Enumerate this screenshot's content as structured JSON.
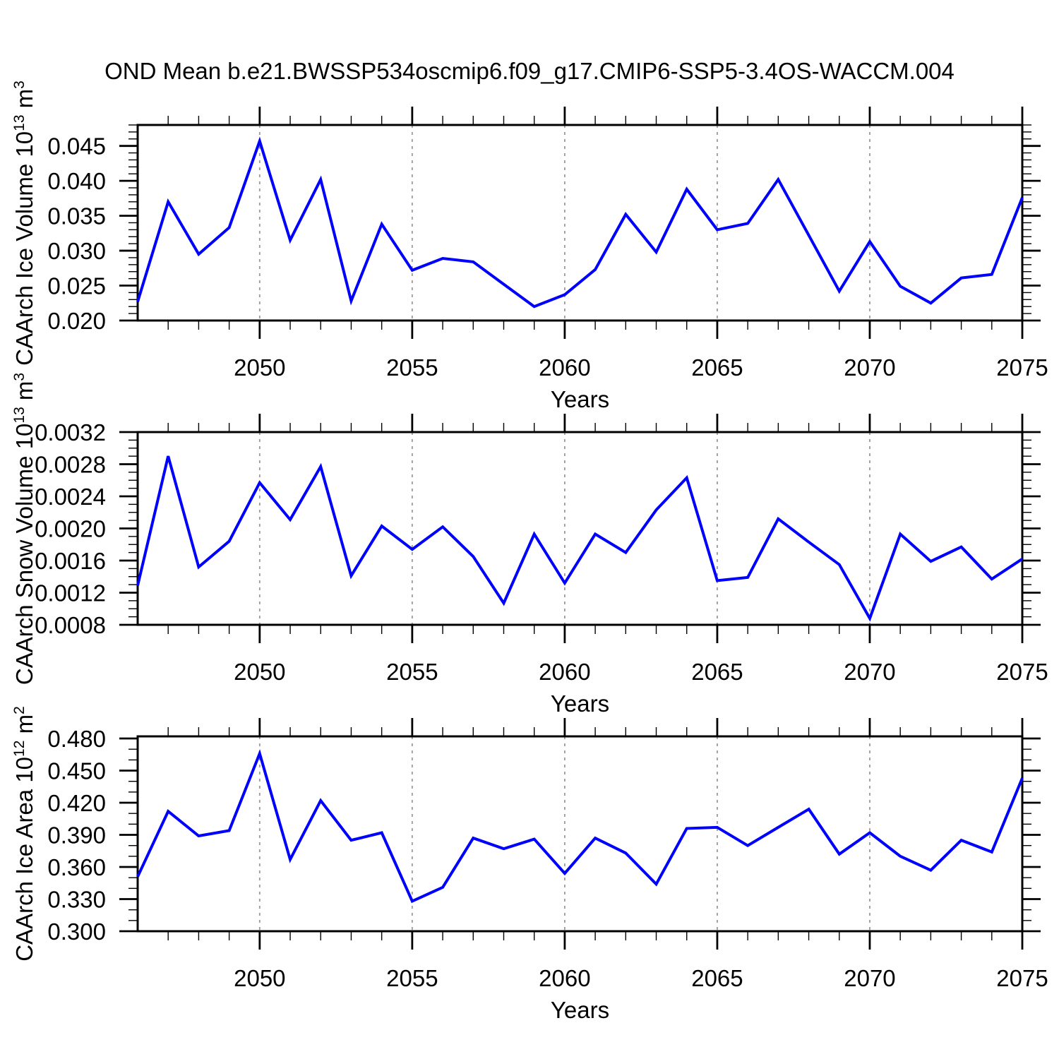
{
  "title": "OND Mean b.e21.BWSSP534oscmip6.f09_g17.CMIP6-SSP5-3.4OS-WACCM.004",
  "colors": {
    "series_line": "#0000ff",
    "gridline": "#9a9a9a",
    "axis": "#000000"
  },
  "x_axis": {
    "label": "Years",
    "range": [
      2046,
      2075
    ],
    "major_tick_years": [
      2050,
      2055,
      2060,
      2065,
      2070,
      2075
    ],
    "tick_labels": [
      "2050",
      "2055",
      "2060",
      "2065",
      "2070",
      "2075"
    ],
    "gridline_years": [
      2050,
      2055,
      2060,
      2065,
      2070
    ],
    "minor_step": 1
  },
  "chart_data": [
    {
      "type": "line",
      "title": "",
      "ylabel_plain": "CAArch Ice Volume 10^13 m^3",
      "ylabel_parts": {
        "a": "CAArch Ice Volume 10",
        "exp_a": "13",
        "b": " m",
        "exp_b": "3"
      },
      "xlabel": "Years",
      "ylim": [
        0.02,
        0.048
      ],
      "ytick_values": [
        0.02,
        0.025,
        0.03,
        0.035,
        0.04,
        0.045
      ],
      "ytick_labels": [
        "0.020",
        "0.025",
        "0.030",
        "0.035",
        "0.040",
        "0.045"
      ],
      "y_minor_step": 0.001,
      "grid": "vertical-dashed",
      "legend": "none",
      "x": [
        2046,
        2047,
        2048,
        2049,
        2050,
        2051,
        2052,
        2053,
        2054,
        2055,
        2056,
        2057,
        2058,
        2059,
        2060,
        2061,
        2062,
        2063,
        2064,
        2065,
        2066,
        2067,
        2068,
        2069,
        2070,
        2071,
        2072,
        2073,
        2074,
        2075
      ],
      "values": [
        0.0227,
        0.037,
        0.0295,
        0.0333,
        0.0457,
        0.0315,
        0.0402,
        0.0228,
        0.0338,
        0.0272,
        0.0289,
        0.0284,
        0.0252,
        0.022,
        0.0237,
        0.0273,
        0.0352,
        0.0298,
        0.0388,
        0.033,
        0.0339,
        0.0402,
        0.0322,
        0.0242,
        0.0313,
        0.0249,
        0.0225,
        0.0261,
        0.0266,
        0.0376
      ]
    },
    {
      "type": "line",
      "title": "",
      "ylabel_plain": "CAArch Snow Volume 10^13 m^3",
      "ylabel_parts": {
        "a": "CAArch Snow Volume 10",
        "exp_a": "13",
        "b": " m",
        "exp_b": "3"
      },
      "xlabel": "Years",
      "ylim": [
        0.0008,
        0.0032
      ],
      "ytick_values": [
        0.0008,
        0.0012,
        0.0016,
        0.002,
        0.0024,
        0.0028,
        0.0032
      ],
      "ytick_labels": [
        "0.0008",
        "0.0012",
        "0.0016",
        "0.0020",
        "0.0024",
        "0.0028",
        "0.0032"
      ],
      "y_minor_step": 0.0001,
      "grid": "vertical-dashed",
      "legend": "none",
      "x": [
        2046,
        2047,
        2048,
        2049,
        2050,
        2051,
        2052,
        2053,
        2054,
        2055,
        2056,
        2057,
        2058,
        2059,
        2060,
        2061,
        2062,
        2063,
        2064,
        2065,
        2066,
        2067,
        2068,
        2069,
        2070,
        2071,
        2072,
        2073,
        2074,
        2075
      ],
      "values": [
        0.00129,
        0.0029,
        0.00152,
        0.00184,
        0.00257,
        0.00211,
        0.00277,
        0.00141,
        0.00203,
        0.00174,
        0.00202,
        0.00165,
        0.00107,
        0.00193,
        0.00132,
        0.00193,
        0.0017,
        0.00223,
        0.00263,
        0.00135,
        0.00139,
        0.00212,
        0.00183,
        0.00155,
        0.00088,
        0.00193,
        0.00159,
        0.00177,
        0.00137,
        0.00162
      ]
    },
    {
      "type": "line",
      "title": "",
      "ylabel_plain": "CAArch Ice Area 10^12 m^2",
      "ylabel_parts": {
        "a": "CAArch Ice Area 10",
        "exp_a": "12",
        "b": " m",
        "exp_b": "2"
      },
      "xlabel": "Years",
      "ylim": [
        0.3,
        0.482
      ],
      "ytick_values": [
        0.3,
        0.33,
        0.36,
        0.39,
        0.42,
        0.45,
        0.48
      ],
      "ytick_labels": [
        "0.300",
        "0.330",
        "0.360",
        "0.390",
        "0.420",
        "0.450",
        "0.480"
      ],
      "y_minor_step": 0.01,
      "grid": "vertical-dashed",
      "legend": "none",
      "x": [
        2046,
        2047,
        2048,
        2049,
        2050,
        2051,
        2052,
        2053,
        2054,
        2055,
        2056,
        2057,
        2058,
        2059,
        2060,
        2061,
        2062,
        2063,
        2064,
        2065,
        2066,
        2067,
        2068,
        2069,
        2070,
        2071,
        2072,
        2073,
        2074,
        2075
      ],
      "values": [
        0.351,
        0.412,
        0.389,
        0.394,
        0.466,
        0.367,
        0.422,
        0.385,
        0.392,
        0.328,
        0.341,
        0.387,
        0.377,
        0.386,
        0.354,
        0.387,
        0.373,
        0.344,
        0.396,
        0.397,
        0.38,
        0.397,
        0.414,
        0.372,
        0.392,
        0.37,
        0.357,
        0.385,
        0.374,
        0.443
      ]
    }
  ]
}
